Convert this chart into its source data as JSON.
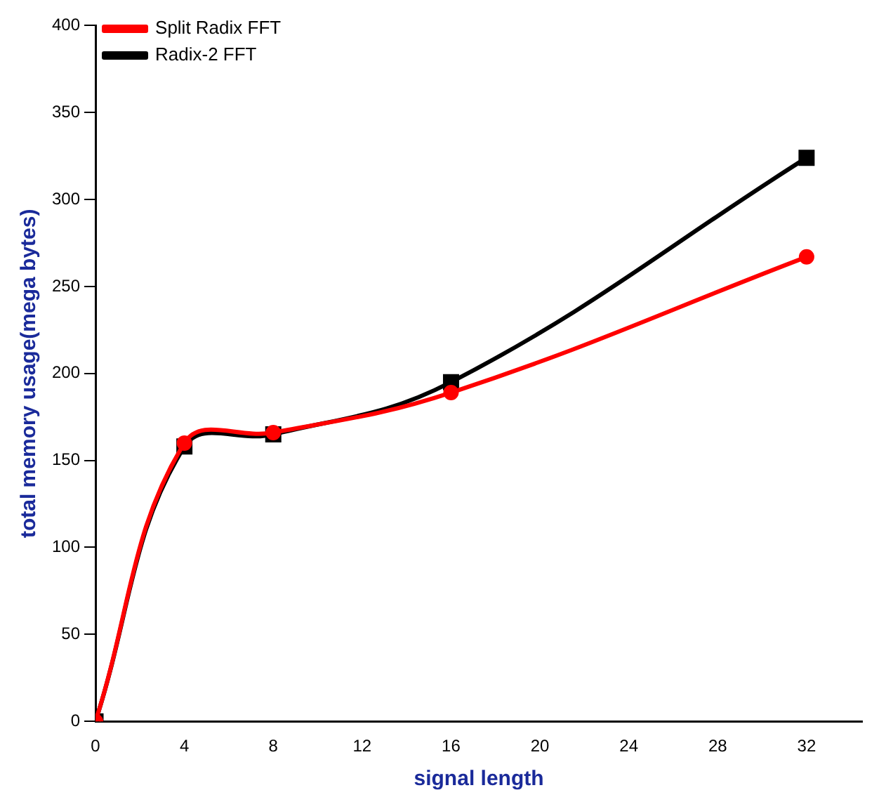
{
  "chart_data": {
    "type": "line",
    "xlabel": "signal length",
    "ylabel": "total memory usage(mega bytes)",
    "x": [
      0,
      4,
      8,
      16,
      32
    ],
    "series": [
      {
        "name": "Radix-2 FFT",
        "color": "#000000",
        "marker": "square",
        "values": [
          0,
          158,
          165,
          195,
          324
        ]
      },
      {
        "name": "Split Radix FFT",
        "color": "#ff0000",
        "marker": "circle",
        "values": [
          0,
          160,
          166,
          189,
          267
        ]
      }
    ],
    "xlim": [
      0,
      34.5
    ],
    "xticks": [
      0,
      4,
      8,
      12,
      16,
      20,
      24,
      28,
      32
    ],
    "ylim": [
      0,
      400
    ],
    "yticks": [
      0,
      50,
      100,
      150,
      200,
      250,
      300,
      350,
      400
    ],
    "grid": false,
    "legend": "top left"
  }
}
